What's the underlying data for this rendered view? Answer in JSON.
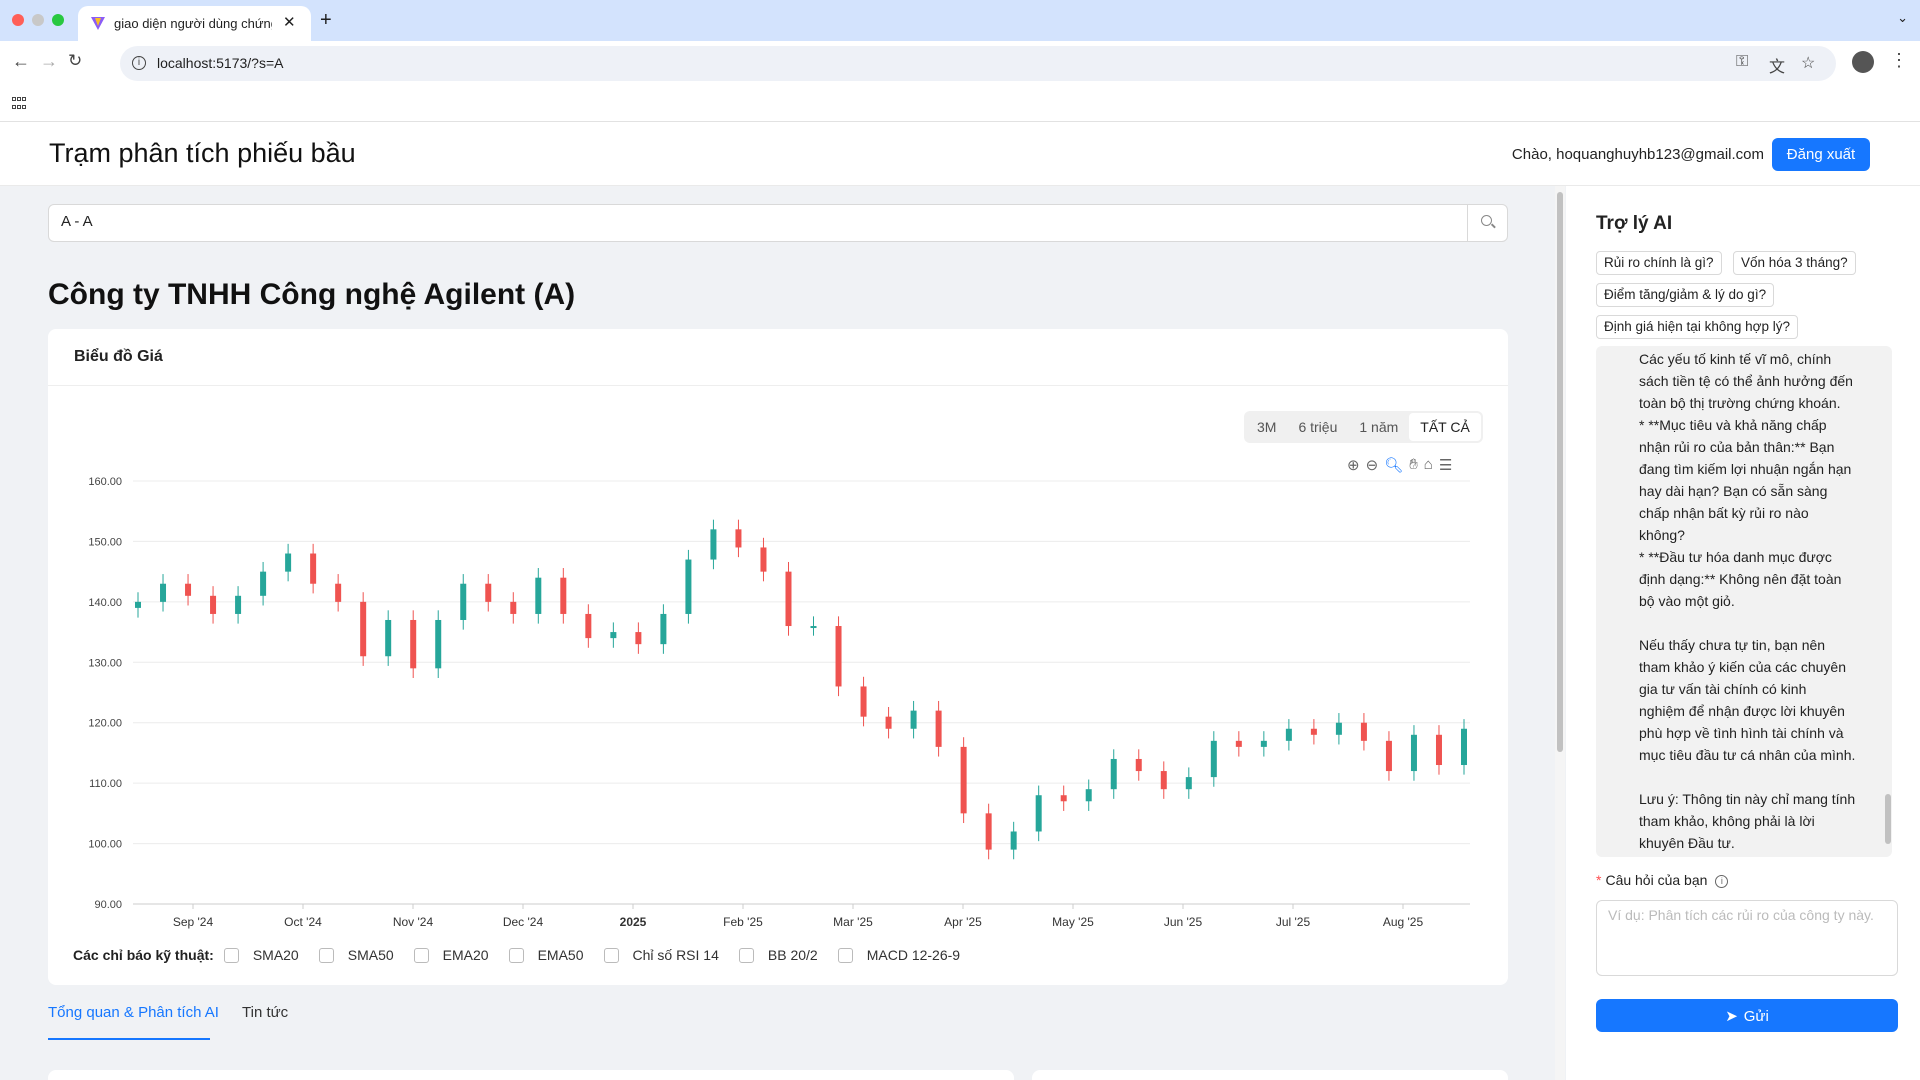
{
  "browser": {
    "tab_title": "giao diện người dùng chứng k",
    "tab_close": "✕",
    "new_tab": "+",
    "url": "localhost:5173/?s=A",
    "icons": [
      "back-icon",
      "forward-icon",
      "reload-icon",
      "key-icon",
      "translate-icon",
      "star-icon",
      "profile-icon",
      "menu-icon"
    ]
  },
  "header": {
    "title": "Trạm phân tích phiếu bầu",
    "greeting": "Chào, hoquanghuyhb123@gmail.com",
    "logout_label": "Đăng xuất"
  },
  "search": {
    "value": "A - A"
  },
  "company": {
    "name": "Công ty TNHH Công nghệ Agilent (A)"
  },
  "price_chart": {
    "card_title": "Biểu đồ Giá",
    "ranges": [
      "3M",
      "6 triệu",
      "1 năm",
      "TẤT CẢ"
    ],
    "active_range": "TẤT CẢ",
    "tools": [
      "zoom-in-icon",
      "zoom-out-icon",
      "zoom-select-icon",
      "pan-icon",
      "reset-home-icon",
      "chart-menu-icon"
    ]
  },
  "chart_data": {
    "type": "line",
    "subtype": "candlestick",
    "title": "",
    "xlabel": "",
    "ylabel": "",
    "ylim": [
      90,
      160
    ],
    "y_ticks": [
      "160.00",
      "150.00",
      "140.00",
      "130.00",
      "120.00",
      "110.00",
      "100.00",
      "90.00"
    ],
    "x_ticks": [
      "Sep '24",
      "Oct '24",
      "Nov '24",
      "Dec '24",
      "2025",
      "Feb '25",
      "Mar '25",
      "Apr '25",
      "May '25",
      "Jun '25",
      "Jul '25",
      "Aug '25"
    ],
    "up_color": "#26a69a",
    "down_color": "#ef5350",
    "grid": true,
    "series": [
      {
        "x": [
          "2024-08-15",
          "2024-08-22",
          "2024-08-29",
          "2024-09-05",
          "2024-09-12",
          "2024-09-19",
          "2024-09-26",
          "2024-10-03",
          "2024-10-10",
          "2024-10-17",
          "2024-10-24",
          "2024-10-31",
          "2024-11-07",
          "2024-11-14",
          "2024-11-21",
          "2024-11-28",
          "2024-12-05",
          "2024-12-12",
          "2024-12-19",
          "2024-12-26",
          "2025-01-02",
          "2025-01-09",
          "2025-01-16",
          "2025-01-23",
          "2025-01-30",
          "2025-02-06",
          "2025-02-13",
          "2025-02-20",
          "2025-02-27",
          "2025-03-06",
          "2025-03-13",
          "2025-03-20",
          "2025-03-27",
          "2025-04-03",
          "2025-04-10",
          "2025-04-17",
          "2025-04-24",
          "2025-05-01",
          "2025-05-08",
          "2025-05-15",
          "2025-05-22",
          "2025-05-29",
          "2025-06-05",
          "2025-06-12",
          "2025-06-19",
          "2025-06-26",
          "2025-07-03",
          "2025-07-10",
          "2025-07-17",
          "2025-07-24",
          "2025-07-31",
          "2025-08-07",
          "2025-08-14",
          "2025-08-21"
        ],
        "values": [
          140,
          143,
          141,
          138,
          141,
          145,
          148,
          143,
          140,
          131,
          137,
          129,
          137,
          143,
          140,
          138,
          144,
          138,
          134,
          135,
          133,
          138,
          147,
          152,
          149,
          145,
          136,
          136,
          126,
          121,
          119,
          122,
          116,
          105,
          99,
          102,
          108,
          107,
          109,
          114,
          112,
          109,
          111,
          117,
          116,
          117,
          119,
          118,
          120,
          117,
          112,
          118,
          113,
          119
        ]
      }
    ]
  },
  "indicators": {
    "label": "Các chỉ báo kỹ thuật:",
    "items": [
      "SMA20",
      "SMA50",
      "EMA20",
      "EMA50",
      "Chỉ số RSI 14",
      "BB 20/2",
      "MACD 12-26-9"
    ]
  },
  "tabs": [
    {
      "label": "Tổng quan & Phân tích AI",
      "active": true
    },
    {
      "label": "Tin tức",
      "active": false
    }
  ],
  "ai": {
    "title": "Trợ lý AI",
    "chips": [
      "Rủi ro chính là gì?",
      "Vốn hóa 3 tháng?",
      "Điểm tăng/giảm & lý do gì?",
      "Định giá hiện tại không hợp lý?"
    ],
    "message_lines": [
      "Các yếu tố kinh tế vĩ mô, chính",
      "sách tiền tệ có thể ảnh hưởng đến",
      "toàn bộ thị trường chứng khoán.",
      "* **Mục tiêu và khả năng chấp",
      "nhận rủi ro của bản thân:** Bạn",
      "đang tìm kiếm lợi nhuận ngắn hạn",
      "hay dài hạn? Bạn có sẵn sàng",
      "chấp nhận bất kỳ rủi ro nào",
      "không?",
      "* **Đầu tư hóa danh mục được",
      "định dạng:** Không nên đặt toàn",
      "bộ vào một giỏ.",
      "",
      "Nếu thấy chưa tự tin, bạn nên",
      "tham khảo ý kiến của các chuyên",
      "gia tư vấn tài chính có kinh",
      "nghiệm để nhận được lời khuyên",
      "phù hợp về tình hình tài chính và",
      "mục tiêu đầu tư cá nhân của mình.",
      "",
      "Lưu ý: Thông tin này chỉ mang tính",
      "tham khảo, không phải là lời",
      "khuyên Đầu tư."
    ],
    "question_label": "Câu hỏi của bạn",
    "required_mark": "*",
    "question_placeholder": "Ví dụ: Phân tích các rủi ro của công ty này.",
    "send_label": "Gửi"
  }
}
